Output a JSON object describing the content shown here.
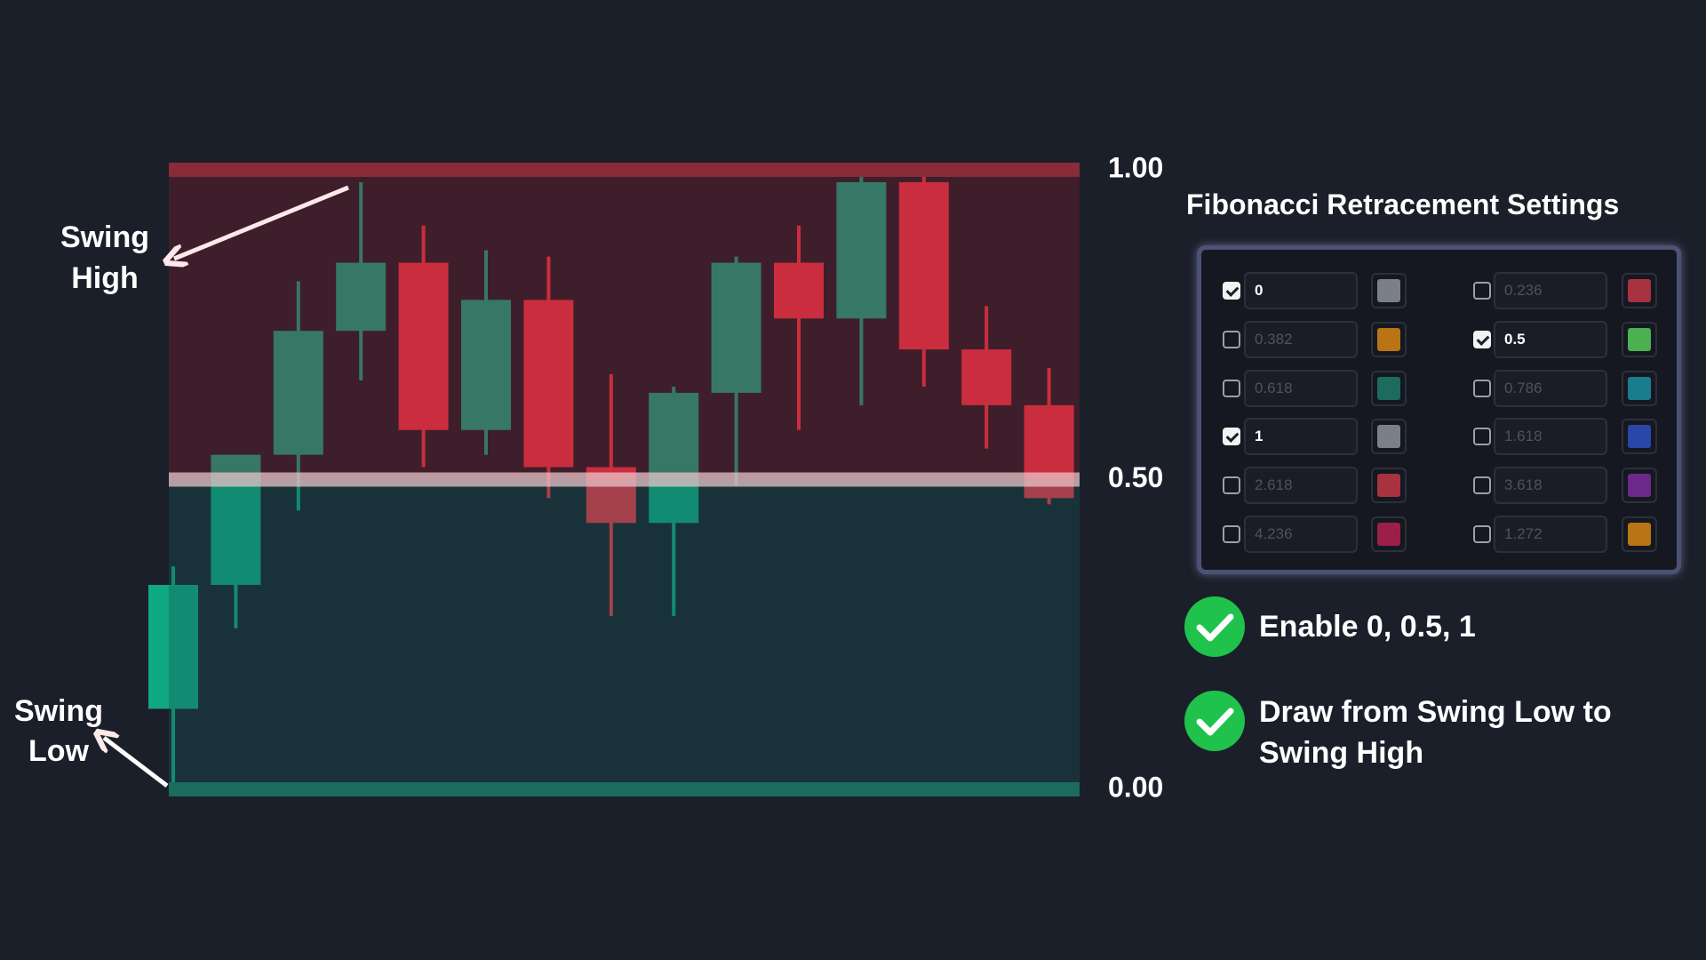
{
  "chart_data": {
    "type": "candlestick",
    "up_color": "#10a883",
    "down_color": "#f23645",
    "open": [
      0.13,
      0.33,
      0.54,
      0.74,
      0.85,
      0.58,
      0.79,
      0.52,
      0.43,
      0.64,
      0.85,
      0.76,
      0.98,
      0.71,
      0.62
    ],
    "high": [
      0.36,
      0.54,
      0.82,
      0.98,
      0.91,
      0.87,
      0.86,
      0.67,
      0.65,
      0.86,
      0.91,
      0.99,
      1.0,
      0.78,
      0.68
    ],
    "low": [
      0,
      0.26,
      0.45,
      0.66,
      0.52,
      0.54,
      0.47,
      0.28,
      0.28,
      0.49,
      0.58,
      0.62,
      0.65,
      0.55,
      0.46
    ],
    "close": [
      0.33,
      0.54,
      0.74,
      0.85,
      0.58,
      0.79,
      0.52,
      0.43,
      0.64,
      0.85,
      0.76,
      0.98,
      0.71,
      0.62,
      0.47
    ],
    "ylim": [
      0,
      1
    ],
    "yticks": [
      {
        "value": 0,
        "label": "0.00"
      },
      {
        "value": 0.5,
        "label": "0.50"
      },
      {
        "value": 1,
        "label": "1.00"
      }
    ],
    "level_colors": [
      "#1b6b5e",
      "#e8c4c8",
      "#8a2b3a"
    ],
    "zone_colors": [
      "rgba(22,85,85,0.35)",
      "rgba(130,30,45,0.35)"
    ],
    "annotations": [
      {
        "lines": [
          "Swing",
          "High"
        ]
      },
      {
        "lines": [
          "Swing",
          "Low"
        ]
      }
    ]
  },
  "settings": {
    "title": "Fibonacci Retracement Settings",
    "levels": [
      {
        "label": "0",
        "checked": true,
        "color": "#7b7f88"
      },
      {
        "label": "0.236",
        "checked": false,
        "color": "#a8323f"
      },
      {
        "label": "0.382",
        "checked": false,
        "color": "#b87415"
      },
      {
        "label": "0.5",
        "checked": true,
        "color": "#4caf50"
      },
      {
        "label": "0.618",
        "checked": false,
        "color": "#1c6b5e"
      },
      {
        "label": "0.786",
        "checked": false,
        "color": "#1a7d8c"
      },
      {
        "label": "1",
        "checked": true,
        "color": "#7b7f88"
      },
      {
        "label": "1.618",
        "checked": false,
        "color": "#2a46a8"
      },
      {
        "label": "2.618",
        "checked": false,
        "color": "#a8323f"
      },
      {
        "label": "3.618",
        "checked": false,
        "color": "#6b2a8a"
      },
      {
        "label": "4.236",
        "checked": false,
        "color": "#9c1f4a"
      },
      {
        "label": "1.272",
        "checked": false,
        "color": "#b87415"
      }
    ]
  },
  "checklist": [
    "Enable 0, 0.5, 1",
    "Draw from Swing Low to Swing High"
  ]
}
